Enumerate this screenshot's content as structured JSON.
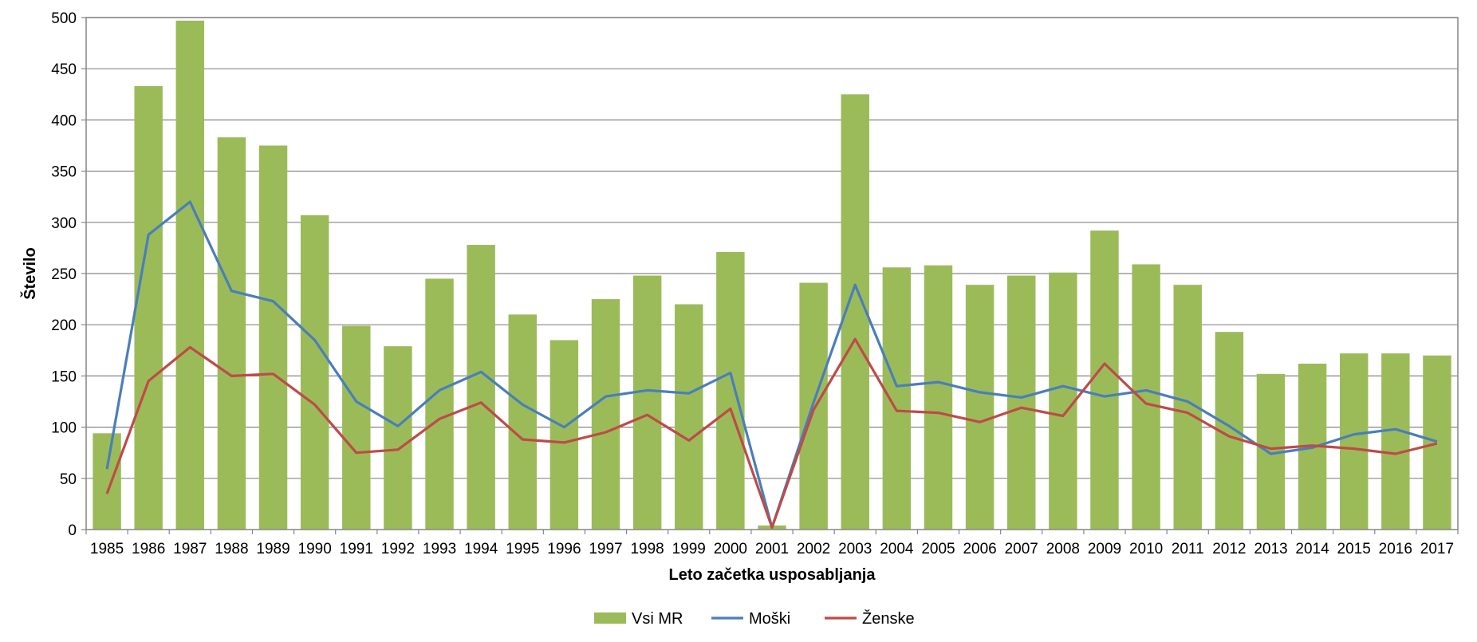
{
  "chart_data": {
    "type": "bar",
    "title": "",
    "xlabel": "Leto začetka usposabljanja",
    "ylabel": "Število",
    "ylim": [
      0,
      500
    ],
    "yticks": [
      0,
      50,
      100,
      150,
      200,
      250,
      300,
      350,
      400,
      450,
      500
    ],
    "grid": true,
    "legend_position": "bottom",
    "categories": [
      "1985",
      "1986",
      "1987",
      "1988",
      "1989",
      "1990",
      "1991",
      "1992",
      "1993",
      "1994",
      "1995",
      "1996",
      "1997",
      "1998",
      "1999",
      "2000",
      "2001",
      "2002",
      "2003",
      "2004",
      "2005",
      "2006",
      "2007",
      "2008",
      "2009",
      "2010",
      "2011",
      "2012",
      "2013",
      "2014",
      "2015",
      "2016",
      "2017"
    ],
    "series": [
      {
        "name": "Vsi MR",
        "type": "bar",
        "color": "#9bbb59",
        "values": [
          94,
          433,
          497,
          383,
          375,
          307,
          199,
          179,
          245,
          278,
          210,
          185,
          225,
          248,
          220,
          271,
          4,
          241,
          425,
          256,
          258,
          239,
          248,
          251,
          292,
          259,
          239,
          193,
          152,
          162,
          172,
          172,
          170
        ]
      },
      {
        "name": "Moški",
        "type": "line",
        "color": "#4a7ebb",
        "values": [
          59,
          288,
          320,
          233,
          223,
          185,
          125,
          101,
          136,
          154,
          122,
          100,
          130,
          136,
          133,
          153,
          2,
          124,
          239,
          140,
          144,
          134,
          129,
          140,
          130,
          136,
          125,
          101,
          74,
          80,
          93,
          98,
          86
        ]
      },
      {
        "name": "Ženske",
        "type": "line",
        "color": "#be4b48",
        "values": [
          35,
          145,
          178,
          150,
          152,
          122,
          75,
          78,
          108,
          124,
          88,
          85,
          95,
          112,
          87,
          118,
          2,
          117,
          186,
          116,
          114,
          105,
          119,
          111,
          162,
          123,
          114,
          91,
          79,
          82,
          79,
          74,
          84
        ]
      }
    ]
  }
}
